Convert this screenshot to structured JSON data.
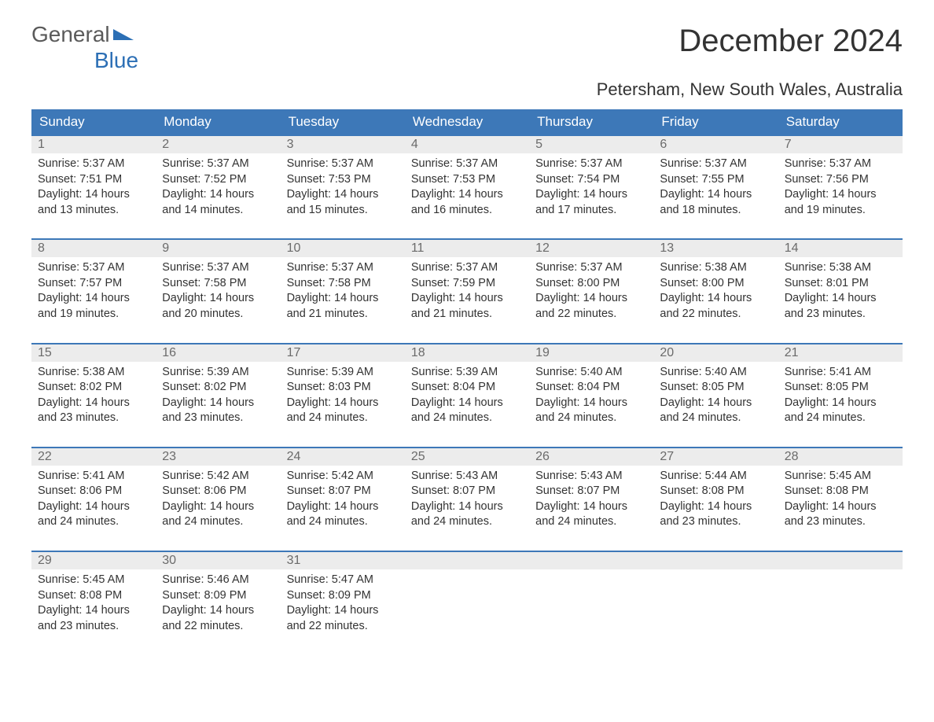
{
  "logo": {
    "text1": "General",
    "text2": "Blue"
  },
  "title": "December 2024",
  "location": "Petersham, New South Wales, Australia",
  "colors": {
    "header_bg": "#3d78b8",
    "header_text": "#ffffff",
    "daynum_bg": "#ececec",
    "daynum_text": "#6b6b6b",
    "body_text": "#333333",
    "logo_blue": "#2c6fb5",
    "logo_grey": "#5a5a5a",
    "week_border": "#3d78b8",
    "page_bg": "#ffffff"
  },
  "day_headers": [
    "Sunday",
    "Monday",
    "Tuesday",
    "Wednesday",
    "Thursday",
    "Friday",
    "Saturday"
  ],
  "weeks": [
    [
      {
        "n": "1",
        "sr": "Sunrise: 5:37 AM",
        "ss": "Sunset: 7:51 PM",
        "d1": "Daylight: 14 hours",
        "d2": "and 13 minutes."
      },
      {
        "n": "2",
        "sr": "Sunrise: 5:37 AM",
        "ss": "Sunset: 7:52 PM",
        "d1": "Daylight: 14 hours",
        "d2": "and 14 minutes."
      },
      {
        "n": "3",
        "sr": "Sunrise: 5:37 AM",
        "ss": "Sunset: 7:53 PM",
        "d1": "Daylight: 14 hours",
        "d2": "and 15 minutes."
      },
      {
        "n": "4",
        "sr": "Sunrise: 5:37 AM",
        "ss": "Sunset: 7:53 PM",
        "d1": "Daylight: 14 hours",
        "d2": "and 16 minutes."
      },
      {
        "n": "5",
        "sr": "Sunrise: 5:37 AM",
        "ss": "Sunset: 7:54 PM",
        "d1": "Daylight: 14 hours",
        "d2": "and 17 minutes."
      },
      {
        "n": "6",
        "sr": "Sunrise: 5:37 AM",
        "ss": "Sunset: 7:55 PM",
        "d1": "Daylight: 14 hours",
        "d2": "and 18 minutes."
      },
      {
        "n": "7",
        "sr": "Sunrise: 5:37 AM",
        "ss": "Sunset: 7:56 PM",
        "d1": "Daylight: 14 hours",
        "d2": "and 19 minutes."
      }
    ],
    [
      {
        "n": "8",
        "sr": "Sunrise: 5:37 AM",
        "ss": "Sunset: 7:57 PM",
        "d1": "Daylight: 14 hours",
        "d2": "and 19 minutes."
      },
      {
        "n": "9",
        "sr": "Sunrise: 5:37 AM",
        "ss": "Sunset: 7:58 PM",
        "d1": "Daylight: 14 hours",
        "d2": "and 20 minutes."
      },
      {
        "n": "10",
        "sr": "Sunrise: 5:37 AM",
        "ss": "Sunset: 7:58 PM",
        "d1": "Daylight: 14 hours",
        "d2": "and 21 minutes."
      },
      {
        "n": "11",
        "sr": "Sunrise: 5:37 AM",
        "ss": "Sunset: 7:59 PM",
        "d1": "Daylight: 14 hours",
        "d2": "and 21 minutes."
      },
      {
        "n": "12",
        "sr": "Sunrise: 5:37 AM",
        "ss": "Sunset: 8:00 PM",
        "d1": "Daylight: 14 hours",
        "d2": "and 22 minutes."
      },
      {
        "n": "13",
        "sr": "Sunrise: 5:38 AM",
        "ss": "Sunset: 8:00 PM",
        "d1": "Daylight: 14 hours",
        "d2": "and 22 minutes."
      },
      {
        "n": "14",
        "sr": "Sunrise: 5:38 AM",
        "ss": "Sunset: 8:01 PM",
        "d1": "Daylight: 14 hours",
        "d2": "and 23 minutes."
      }
    ],
    [
      {
        "n": "15",
        "sr": "Sunrise: 5:38 AM",
        "ss": "Sunset: 8:02 PM",
        "d1": "Daylight: 14 hours",
        "d2": "and 23 minutes."
      },
      {
        "n": "16",
        "sr": "Sunrise: 5:39 AM",
        "ss": "Sunset: 8:02 PM",
        "d1": "Daylight: 14 hours",
        "d2": "and 23 minutes."
      },
      {
        "n": "17",
        "sr": "Sunrise: 5:39 AM",
        "ss": "Sunset: 8:03 PM",
        "d1": "Daylight: 14 hours",
        "d2": "and 24 minutes."
      },
      {
        "n": "18",
        "sr": "Sunrise: 5:39 AM",
        "ss": "Sunset: 8:04 PM",
        "d1": "Daylight: 14 hours",
        "d2": "and 24 minutes."
      },
      {
        "n": "19",
        "sr": "Sunrise: 5:40 AM",
        "ss": "Sunset: 8:04 PM",
        "d1": "Daylight: 14 hours",
        "d2": "and 24 minutes."
      },
      {
        "n": "20",
        "sr": "Sunrise: 5:40 AM",
        "ss": "Sunset: 8:05 PM",
        "d1": "Daylight: 14 hours",
        "d2": "and 24 minutes."
      },
      {
        "n": "21",
        "sr": "Sunrise: 5:41 AM",
        "ss": "Sunset: 8:05 PM",
        "d1": "Daylight: 14 hours",
        "d2": "and 24 minutes."
      }
    ],
    [
      {
        "n": "22",
        "sr": "Sunrise: 5:41 AM",
        "ss": "Sunset: 8:06 PM",
        "d1": "Daylight: 14 hours",
        "d2": "and 24 minutes."
      },
      {
        "n": "23",
        "sr": "Sunrise: 5:42 AM",
        "ss": "Sunset: 8:06 PM",
        "d1": "Daylight: 14 hours",
        "d2": "and 24 minutes."
      },
      {
        "n": "24",
        "sr": "Sunrise: 5:42 AM",
        "ss": "Sunset: 8:07 PM",
        "d1": "Daylight: 14 hours",
        "d2": "and 24 minutes."
      },
      {
        "n": "25",
        "sr": "Sunrise: 5:43 AM",
        "ss": "Sunset: 8:07 PM",
        "d1": "Daylight: 14 hours",
        "d2": "and 24 minutes."
      },
      {
        "n": "26",
        "sr": "Sunrise: 5:43 AM",
        "ss": "Sunset: 8:07 PM",
        "d1": "Daylight: 14 hours",
        "d2": "and 24 minutes."
      },
      {
        "n": "27",
        "sr": "Sunrise: 5:44 AM",
        "ss": "Sunset: 8:08 PM",
        "d1": "Daylight: 14 hours",
        "d2": "and 23 minutes."
      },
      {
        "n": "28",
        "sr": "Sunrise: 5:45 AM",
        "ss": "Sunset: 8:08 PM",
        "d1": "Daylight: 14 hours",
        "d2": "and 23 minutes."
      }
    ],
    [
      {
        "n": "29",
        "sr": "Sunrise: 5:45 AM",
        "ss": "Sunset: 8:08 PM",
        "d1": "Daylight: 14 hours",
        "d2": "and 23 minutes."
      },
      {
        "n": "30",
        "sr": "Sunrise: 5:46 AM",
        "ss": "Sunset: 8:09 PM",
        "d1": "Daylight: 14 hours",
        "d2": "and 22 minutes."
      },
      {
        "n": "31",
        "sr": "Sunrise: 5:47 AM",
        "ss": "Sunset: 8:09 PM",
        "d1": "Daylight: 14 hours",
        "d2": "and 22 minutes."
      },
      null,
      null,
      null,
      null
    ]
  ]
}
